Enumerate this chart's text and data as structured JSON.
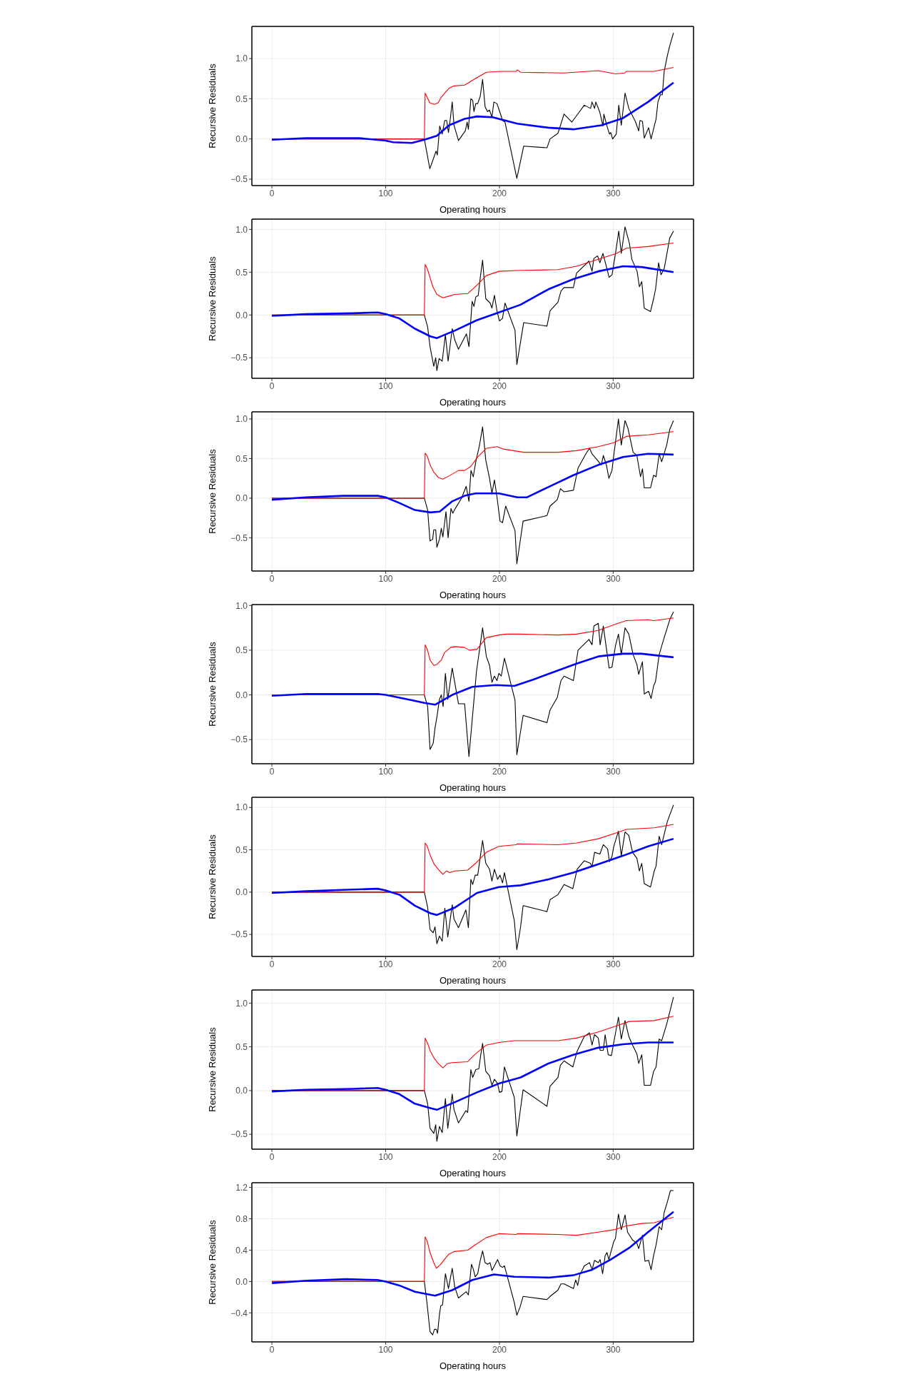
{
  "chart_data": [
    {
      "type": "line",
      "xlabel": "Operating hours",
      "ylabel": "Recursive Residuals",
      "xlim": [
        -17.6,
        370.6
      ],
      "xticks": [
        0,
        100,
        200,
        300
      ],
      "ylim": [
        -0.58,
        1.4
      ],
      "yticks": [
        {
          "value": -0.5,
          "label": "−0.5"
        },
        {
          "value": 0,
          "label": "0.0"
        },
        {
          "value": 0.5,
          "label": "0.5"
        },
        {
          "value": 1,
          "label": "1.0"
        }
      ],
      "grid": true,
      "series": [
        {
          "color": "#000000",
          "x": [
            0,
            134,
            138.8,
            142.6,
            144.3,
            145.4,
            147.5,
            149.7,
            151.9,
            153.6,
            155.2,
            156.8,
            158.5,
            160.1,
            164,
            170,
            171.6,
            172.7,
            174.9,
            176.5,
            177.6,
            179.2,
            180.9,
            183.1,
            185.2,
            187.4,
            189.6,
            191.3,
            193.4,
            195.1,
            197.8,
            200.5,
            202.7,
            204.9,
            215.3,
            221.3,
            241.8,
            244.5,
            251.4,
            256.8,
            263.7,
            267.8,
            274.6,
            280.1,
            281.4,
            283.6,
            284.7,
            288.3,
            291,
            291.8,
            294.5,
            296.7,
            297.8,
            299.5,
            302.7,
            304.9,
            307.1,
            310.4,
            313.7,
            319.7,
            322.4,
            323.5,
            325.7,
            327.3,
            331.1,
            333.3,
            336.1,
            337.7,
            339.3,
            341.5,
            343.2,
            344.8,
            347.5,
            349.7,
            353
          ],
          "values": [
            0,
            0,
            -0.37,
            -0.22,
            -0.15,
            -0.2,
            0.16,
            0.06,
            0.23,
            0.23,
            0.08,
            0.25,
            0.46,
            0.17,
            -0.02,
            0.1,
            0.21,
            0.12,
            0.5,
            0.48,
            0.34,
            0.44,
            0.44,
            0.53,
            0.74,
            0.4,
            0.34,
            0.36,
            0.27,
            0.46,
            0.44,
            0.33,
            0.23,
            0.21,
            -0.49,
            -0.09,
            -0.11,
            0,
            0.07,
            0.31,
            0.21,
            0.29,
            0.42,
            0.38,
            0.46,
            0.38,
            0.46,
            0.33,
            0.16,
            0.31,
            0.16,
            0.06,
            0.08,
            0,
            0.06,
            0.42,
            0.17,
            0.57,
            0.38,
            0.21,
            0.1,
            0.23,
            0.22,
            0.01,
            0.14,
            0,
            0.16,
            0.25,
            0.46,
            0.55,
            0.55,
            0.84,
            1.03,
            1.16,
            1.32
          ]
        },
        {
          "color": "#ff0000",
          "x": [
            0,
            134,
            134.7,
            138.8,
            142.6,
            146.2,
            148.9,
            155.7,
            160.1,
            169.4,
            177.6,
            188.5,
            200.5,
            214.5,
            215.8,
            218.6,
            256.8,
            286.9,
            302,
            310.1,
            311.5,
            336,
            353
          ],
          "values": [
            0,
            0,
            0.57,
            0.45,
            0.43,
            0.45,
            0.52,
            0.63,
            0.66,
            0.67,
            0.74,
            0.83,
            0.84,
            0.84,
            0.86,
            0.83,
            0.82,
            0.85,
            0.81,
            0.82,
            0.84,
            0.84,
            0.89
          ]
        },
        {
          "color": "#0000ff",
          "x": [
            0,
            30,
            76.5,
            100,
            106.6,
            123,
            134,
            145,
            155.7,
            169.4,
            180.3,
            194,
            215.8,
            243,
            265,
            289.6,
            308.7,
            330.6,
            353
          ],
          "values": [
            -0.01,
            0.01,
            0.01,
            -0.02,
            -0.04,
            -0.05,
            -0.01,
            0.04,
            0.17,
            0.25,
            0.28,
            0.27,
            0.19,
            0.14,
            0.12,
            0.17,
            0.26,
            0.46,
            0.7
          ]
        }
      ]
    },
    {
      "type": "line",
      "xlabel": "Operating hours",
      "ylabel": "Recursive Residuals",
      "xlim": [
        -17.6,
        370.6
      ],
      "xticks": [
        0,
        100,
        200,
        300
      ],
      "ylim": [
        -0.74,
        1.12
      ],
      "yticks": [
        {
          "value": -0.5,
          "label": "−0.5"
        },
        {
          "value": 0,
          "label": "0.0"
        },
        {
          "value": 0.5,
          "label": "0.5"
        },
        {
          "value": 1,
          "label": "1.0"
        }
      ],
      "grid": true,
      "series": [
        {
          "color": "#000000",
          "x": [
            0,
            134,
            136.9,
            139,
            142.3,
            144,
            145,
            147,
            149.7,
            152.5,
            154.9,
            158.5,
            160.7,
            164,
            171,
            173.2,
            176,
            177.6,
            179.2,
            181.4,
            183,
            185.2,
            188,
            191.8,
            193.4,
            195.6,
            197.8,
            200,
            202.7,
            204.9,
            213.7,
            215.3,
            221.3,
            241.8,
            244.5,
            251.4,
            254.1,
            256.8,
            265,
            267.8,
            278.7,
            281.4,
            283,
            286.3,
            288.3,
            291,
            296.4,
            299,
            302,
            304.9,
            307.1,
            310.4,
            314.2,
            316.4,
            321,
            323,
            325.1,
            327.3,
            332.8,
            335.5,
            337.2,
            339.9,
            342,
            344.8,
            349.7,
            353
          ],
          "values": [
            0,
            0,
            -0.14,
            -0.37,
            -0.6,
            -0.5,
            -0.65,
            -0.51,
            -0.54,
            -0.23,
            -0.54,
            -0.16,
            -0.29,
            -0.4,
            -0.22,
            -0.37,
            0.16,
            0.1,
            0.21,
            0.23,
            0.42,
            0.64,
            0.19,
            0.14,
            0.08,
            0.23,
            0.05,
            -0.07,
            -0.04,
            0.14,
            -0.18,
            -0.58,
            -0.09,
            -0.13,
            0.05,
            0.15,
            0.28,
            0.32,
            0.32,
            0.49,
            0.63,
            0.51,
            0.66,
            0.69,
            0.61,
            0.72,
            0.44,
            0.47,
            0.72,
            0.98,
            0.72,
            1.03,
            0.84,
            0.65,
            0.51,
            0.33,
            0.39,
            0.08,
            0.04,
            0.19,
            0.3,
            0.61,
            0.47,
            0.54,
            0.9,
            0.98
          ]
        },
        {
          "color": "#ff0000",
          "x": [
            0,
            134,
            134.7,
            136.6,
            141.5,
            145,
            150.3,
            155.7,
            160.7,
            172.1,
            180.3,
            188.5,
            199.5,
            215.8,
            251.4,
            267.8,
            286.9,
            303,
            311.5,
            330.6,
            353
          ],
          "values": [
            0,
            0,
            0.59,
            0.54,
            0.33,
            0.24,
            0.2,
            0.22,
            0.24,
            0.25,
            0.35,
            0.46,
            0.51,
            0.52,
            0.53,
            0.57,
            0.65,
            0.72,
            0.78,
            0.8,
            0.84
          ]
        },
        {
          "color": "#0000ff",
          "x": [
            0,
            30,
            71,
            93,
            100,
            112,
            125.7,
            139.3,
            145,
            161.2,
            180.3,
            199.5,
            218.6,
            243,
            265,
            286.9,
            308.7,
            325,
            353
          ],
          "values": [
            -0.01,
            0.01,
            0.02,
            0.03,
            0.01,
            -0.04,
            -0.16,
            -0.25,
            -0.27,
            -0.18,
            -0.06,
            0.03,
            0.12,
            0.3,
            0.42,
            0.51,
            0.57,
            0.56,
            0.5
          ]
        }
      ]
    },
    {
      "type": "line",
      "xlabel": "Operating hours",
      "ylabel": "Recursive Residuals",
      "xlim": [
        -17.6,
        370.6
      ],
      "xticks": [
        0,
        100,
        200,
        300
      ],
      "ylim": [
        -0.92,
        1.09
      ],
      "yticks": [
        {
          "value": -0.5,
          "label": "−0.5"
        },
        {
          "value": 0,
          "label": "0.0"
        },
        {
          "value": 0.5,
          "label": "0.5"
        },
        {
          "value": 1,
          "label": "1.0"
        }
      ],
      "grid": true,
      "series": [
        {
          "color": "#000000",
          "x": [
            0,
            134,
            136.9,
            139,
            141.3,
            142.3,
            144,
            145,
            147.3,
            148.9,
            150.3,
            153,
            154.9,
            157.4,
            159,
            161.2,
            166.7,
            170.8,
            173.2,
            175,
            177,
            179.2,
            182.5,
            185.2,
            188,
            191.3,
            193.4,
            195.6,
            197.8,
            200.5,
            202.7,
            205.5,
            213.7,
            215.3,
            220.8,
            241.8,
            244.5,
            250.8,
            253.6,
            256.8,
            265,
            269.1,
            276,
            279.2,
            281.4,
            289.6,
            291.3,
            294,
            296.2,
            298.9,
            300.5,
            304.6,
            307.1,
            310.4,
            313,
            317.5,
            320.8,
            324,
            325.7,
            327.3,
            332.8,
            335.5,
            337.7,
            340.4,
            342.6,
            347,
            349.7,
            353
          ],
          "values": [
            0,
            0,
            -0.15,
            -0.54,
            -0.52,
            -0.4,
            -0.4,
            -0.62,
            -0.52,
            -0.38,
            -0.49,
            -0.17,
            -0.5,
            -0.13,
            -0.19,
            -0.13,
            0,
            0.15,
            -0.04,
            0.35,
            0.27,
            0.46,
            0.67,
            0.9,
            0.48,
            0.25,
            0.06,
            0.23,
            0.02,
            -0.29,
            -0.31,
            -0.1,
            -0.41,
            -0.83,
            -0.29,
            -0.22,
            -0.1,
            -0.02,
            0.12,
            0.08,
            0.1,
            0.38,
            0.56,
            0.63,
            0.56,
            0.42,
            0.54,
            0.42,
            0.25,
            0.35,
            0.54,
            1,
            0.67,
            0.98,
            0.88,
            0.58,
            0.54,
            0.27,
            0.37,
            0.13,
            0.13,
            0.29,
            0.27,
            0.56,
            0.46,
            0.67,
            0.87,
            0.98
          ]
        },
        {
          "color": "#ff0000",
          "x": [
            0,
            134,
            134.7,
            136.6,
            139,
            142.3,
            146.4,
            150.3,
            155.7,
            164,
            169.4,
            174.9,
            180.3,
            188.5,
            198,
            203.5,
            221.3,
            251.4,
            267.8,
            286.9,
            300.5,
            311.5,
            330.6,
            353
          ],
          "values": [
            0,
            0,
            0.57,
            0.53,
            0.42,
            0.33,
            0.26,
            0.24,
            0.28,
            0.35,
            0.35,
            0.4,
            0.51,
            0.63,
            0.65,
            0.62,
            0.58,
            0.58,
            0.6,
            0.65,
            0.7,
            0.78,
            0.8,
            0.84
          ]
        },
        {
          "color": "#0000ff",
          "x": [
            0,
            30,
            62.8,
            93,
            100,
            112,
            125.7,
            139.3,
            147.5,
            158.5,
            169.4,
            179,
            199.5,
            215.8,
            224,
            243,
            265,
            286.9,
            308.7,
            330.6,
            353
          ],
          "values": [
            -0.02,
            0.01,
            0.03,
            0.03,
            0.01,
            -0.06,
            -0.15,
            -0.18,
            -0.17,
            -0.04,
            0.03,
            0.06,
            0.06,
            0.01,
            0.01,
            0.14,
            0.29,
            0.42,
            0.52,
            0.56,
            0.55
          ]
        }
      ]
    },
    {
      "type": "line",
      "xlabel": "Operating hours",
      "ylabel": "Recursive Residuals",
      "xlim": [
        -17.6,
        370.6
      ],
      "xticks": [
        0,
        100,
        200,
        300
      ],
      "ylim": [
        -0.77,
        1.01
      ],
      "yticks": [
        {
          "value": -0.5,
          "label": "−0.5"
        },
        {
          "value": 0,
          "label": "0.0"
        },
        {
          "value": 0.5,
          "label": "0.5"
        },
        {
          "value": 1,
          "label": "1.0"
        }
      ],
      "grid": true,
      "series": [
        {
          "color": "#000000",
          "x": [
            0,
            134,
            136.9,
            139,
            141.8,
            143.4,
            145,
            147.3,
            148.9,
            150.5,
            152.5,
            154.6,
            158.5,
            164,
            169.4,
            173.2,
            179.8,
            185.2,
            188.5,
            191.3,
            193.4,
            195.6,
            197.8,
            199.5,
            201.6,
            204.4,
            213.7,
            215.3,
            220.8,
            241.8,
            244.5,
            250.8,
            254.1,
            256.8,
            265,
            269.1,
            278.7,
            281.4,
            283,
            286.9,
            288.5,
            291.3,
            296.4,
            298.9,
            302,
            304.6,
            307.1,
            310.4,
            313.7,
            317.5,
            320.8,
            322.4,
            325.7,
            327.3,
            331.1,
            333.3,
            335.5,
            337.2,
            340.4,
            344.3,
            349.7,
            353
          ],
          "values": [
            0,
            0,
            -0.13,
            -0.61,
            -0.54,
            -0.37,
            -0.25,
            -0.05,
            0,
            -0.13,
            0.24,
            -0.05,
            0.3,
            -0.1,
            -0.1,
            -0.69,
            0.26,
            0.75,
            0.43,
            0.33,
            0.14,
            0.21,
            0.16,
            0.24,
            0.21,
            0.41,
            -0.06,
            -0.67,
            -0.23,
            -0.31,
            -0.17,
            -0.03,
            0.16,
            0.21,
            0.16,
            0.5,
            0.62,
            0.56,
            0.77,
            0.8,
            0.56,
            0.77,
            0.3,
            0.31,
            0.55,
            0.68,
            0.45,
            0.75,
            0.68,
            0.45,
            0.34,
            0.23,
            0.37,
            0.01,
            0.04,
            -0.04,
            0.1,
            0.15,
            0.45,
            0.62,
            0.84,
            0.93
          ]
        },
        {
          "color": "#ff0000",
          "x": [
            0,
            134,
            134.7,
            136.6,
            139,
            142.3,
            145,
            149,
            151.6,
            157,
            161.2,
            169.4,
            173.5,
            180.3,
            188.5,
            199.5,
            206.3,
            217.2,
            251.4,
            267.8,
            286.9,
            302,
            311.5,
            330.6,
            336,
            353
          ],
          "values": [
            0,
            0,
            0.56,
            0.51,
            0.39,
            0.33,
            0.34,
            0.39,
            0.47,
            0.53,
            0.54,
            0.53,
            0.5,
            0.51,
            0.64,
            0.67,
            0.68,
            0.68,
            0.67,
            0.68,
            0.72,
            0.79,
            0.83,
            0.84,
            0.83,
            0.86
          ]
        },
        {
          "color": "#0000ff",
          "x": [
            0,
            30,
            68.3,
            93,
            100,
            123,
            134,
            143.4,
            158.5,
            176.2,
            196.7,
            213.1,
            229.5,
            248.6,
            267.8,
            286.9,
            308.7,
            325,
            353
          ],
          "values": [
            -0.01,
            0.01,
            0.01,
            0.01,
            0,
            -0.06,
            -0.09,
            -0.11,
            0,
            0.09,
            0.11,
            0.1,
            0.17,
            0.26,
            0.35,
            0.43,
            0.46,
            0.46,
            0.42
          ]
        }
      ]
    },
    {
      "type": "line",
      "xlabel": "Operating hours",
      "ylabel": "Recursive Residuals",
      "xlim": [
        -17.6,
        370.6
      ],
      "xticks": [
        0,
        100,
        200,
        300
      ],
      "ylim": [
        -0.76,
        1.12
      ],
      "yticks": [
        {
          "value": -0.5,
          "label": "−0.5"
        },
        {
          "value": 0,
          "label": "0.0"
        },
        {
          "value": 0.5,
          "label": "0.5"
        },
        {
          "value": 1,
          "label": "1.0"
        }
      ],
      "grid": true,
      "series": [
        {
          "color": "#000000",
          "x": [
            0,
            134,
            136.9,
            139,
            141.8,
            143.4,
            145,
            147.3,
            149.7,
            152,
            154.6,
            158.5,
            160.1,
            164,
            170.5,
            172.7,
            174.9,
            176.5,
            178.7,
            180.9,
            183,
            185.2,
            188,
            191.3,
            193.4,
            195.6,
            198.4,
            200.5,
            202.7,
            204.4,
            213.1,
            215.3,
            218.6,
            220.8,
            241.8,
            244.5,
            251.4,
            256.8,
            264.5,
            268.3,
            274.6,
            280,
            281.4,
            283.6,
            288.3,
            291.3,
            295.1,
            296.7,
            298.9,
            300.5,
            304.6,
            307.1,
            310.4,
            313.7,
            317,
            320.8,
            323,
            325.1,
            327.3,
            332.8,
            336.1,
            337.7,
            340.4,
            342.6,
            347.5,
            353
          ],
          "values": [
            0,
            0,
            -0.18,
            -0.44,
            -0.48,
            -0.41,
            -0.61,
            -0.52,
            -0.58,
            -0.19,
            -0.53,
            -0.15,
            -0.32,
            -0.42,
            -0.21,
            -0.42,
            0.15,
            0.09,
            0.2,
            0.2,
            0.4,
            0.61,
            0.34,
            0.27,
            0.13,
            0.27,
            0.15,
            0.2,
            0.11,
            0.23,
            -0.34,
            -0.68,
            -0.41,
            -0.16,
            -0.23,
            -0.09,
            -0.03,
            0.09,
            0.04,
            0.27,
            0.37,
            0.34,
            0.3,
            0.47,
            0.45,
            0.56,
            0.51,
            0.36,
            0.42,
            0.54,
            0.72,
            0.43,
            0.71,
            0.67,
            0.47,
            0.4,
            0.25,
            0.34,
            0.1,
            0.06,
            0.25,
            0.31,
            0.66,
            0.56,
            0.83,
            1.03
          ]
        },
        {
          "color": "#ff0000",
          "x": [
            0,
            134,
            134.7,
            136.6,
            139.3,
            142.6,
            146.2,
            150.3,
            153.6,
            156.3,
            160.7,
            172.1,
            179,
            188.5,
            199.5,
            214.5,
            215.8,
            251.4,
            267.8,
            286.9,
            303,
            311.5,
            336,
            353
          ],
          "values": [
            0,
            0,
            0.58,
            0.54,
            0.43,
            0.33,
            0.27,
            0.21,
            0.25,
            0.23,
            0.25,
            0.26,
            0.34,
            0.47,
            0.54,
            0.56,
            0.57,
            0.56,
            0.58,
            0.63,
            0.7,
            0.74,
            0.76,
            0.8
          ]
        },
        {
          "color": "#0000ff",
          "x": [
            0,
            30,
            71,
            93,
            100,
            112,
            125.7,
            139.3,
            145,
            161.2,
            180.3,
            199.5,
            218.6,
            243,
            265,
            286.9,
            308.7,
            330.6,
            353
          ],
          "values": [
            -0.01,
            0.01,
            0.03,
            0.04,
            0.02,
            -0.03,
            -0.16,
            -0.25,
            -0.27,
            -0.18,
            -0.01,
            0.06,
            0.08,
            0.15,
            0.23,
            0.33,
            0.43,
            0.54,
            0.63
          ]
        }
      ]
    },
    {
      "type": "line",
      "xlabel": "Operating hours",
      "ylabel": "Recursive Residuals",
      "xlim": [
        -17.6,
        370.6
      ],
      "xticks": [
        0,
        100,
        200,
        300
      ],
      "ylim": [
        -0.67,
        1.15
      ],
      "yticks": [
        {
          "value": -0.5,
          "label": "−0.5"
        },
        {
          "value": 0,
          "label": "0.0"
        },
        {
          "value": 0.5,
          "label": "0.5"
        },
        {
          "value": 1,
          "label": "1.0"
        }
      ],
      "grid": true,
      "series": [
        {
          "color": "#000000",
          "x": [
            0,
            134,
            136.9,
            139,
            142.3,
            144,
            145,
            147.3,
            149.7,
            152.5,
            154.6,
            158.5,
            160.1,
            164,
            170.5,
            172.1,
            174.9,
            176.5,
            179.2,
            181.9,
            183.6,
            185.2,
            188,
            191.3,
            193.4,
            195.6,
            198.4,
            200,
            202.2,
            204.4,
            213.1,
            215.3,
            220.8,
            241.8,
            244.5,
            251.4,
            253.6,
            256.8,
            264.5,
            268.3,
            274.6,
            279.2,
            281.4,
            283.6,
            286.9,
            288.5,
            291.3,
            292.9,
            295.6,
            298.4,
            300.5,
            304.6,
            307.1,
            310.4,
            313.7,
            317,
            320.8,
            322.4,
            325.1,
            327.3,
            332.8,
            335.5,
            337.7,
            340.4,
            342.6,
            347,
            353
          ],
          "values": [
            0,
            0,
            -0.15,
            -0.43,
            -0.49,
            -0.39,
            -0.58,
            -0.41,
            -0.48,
            -0.09,
            -0.43,
            -0.04,
            -0.22,
            -0.37,
            -0.23,
            -0.25,
            0.24,
            0.15,
            0.24,
            0.25,
            0.41,
            0.54,
            0.22,
            0.17,
            0.06,
            0.13,
            0.08,
            -0.02,
            -0.01,
            0.27,
            -0.08,
            -0.52,
            0.01,
            -0.18,
            0.05,
            0.15,
            0.29,
            0.34,
            0.27,
            0.45,
            0.62,
            0.66,
            0.52,
            0.64,
            0.6,
            0.46,
            0.46,
            0.64,
            0.41,
            0.4,
            0.55,
            0.84,
            0.59,
            0.8,
            0.62,
            0.52,
            0.42,
            0.31,
            0.41,
            0.06,
            0.06,
            0.22,
            0.27,
            0.59,
            0.57,
            0.76,
            1.07
          ]
        },
        {
          "color": "#ff0000",
          "x": [
            0,
            134,
            134.7,
            136.6,
            139.3,
            142.6,
            146.2,
            150.3,
            154.4,
            158.5,
            172.1,
            179,
            188.5,
            199.5,
            213.1,
            251.4,
            267.8,
            286.9,
            303,
            314,
            336,
            353
          ],
          "values": [
            0,
            0,
            0.6,
            0.55,
            0.45,
            0.37,
            0.31,
            0.26,
            0.31,
            0.32,
            0.33,
            0.42,
            0.52,
            0.55,
            0.57,
            0.57,
            0.6,
            0.67,
            0.74,
            0.79,
            0.8,
            0.85
          ]
        },
        {
          "color": "#0000ff",
          "x": [
            0,
            30,
            71,
            93,
            100,
            112,
            125.7,
            139.3,
            145,
            161.2,
            180.3,
            199.5,
            218.6,
            243,
            265,
            286.9,
            308.7,
            330.6,
            353
          ],
          "values": [
            -0.01,
            0.01,
            0.02,
            0.03,
            0.01,
            -0.04,
            -0.15,
            -0.2,
            -0.22,
            -0.13,
            -0.02,
            0.08,
            0.15,
            0.31,
            0.41,
            0.49,
            0.53,
            0.55,
            0.55
          ]
        }
      ]
    },
    {
      "type": "line",
      "xlabel": "Operating hours",
      "ylabel": "Recursive Residuals",
      "xlim": [
        -17.6,
        370.6
      ],
      "xticks": [
        0,
        100,
        200,
        300
      ],
      "ylim": [
        -0.77,
        1.26
      ],
      "yticks": [
        {
          "value": -0.4,
          "label": "−0.4"
        },
        {
          "value": 0,
          "label": "0.0"
        },
        {
          "value": 0.4,
          "label": "0.4"
        },
        {
          "value": 0.8,
          "label": "0.8"
        },
        {
          "value": 1.2,
          "label": "1.2"
        }
      ],
      "grid": true,
      "series": [
        {
          "color": "#000000",
          "x": [
            0,
            134,
            136.3,
            139,
            141.3,
            142.9,
            144.5,
            145.6,
            147.3,
            148.4,
            150,
            152.5,
            155.2,
            158.5,
            160.7,
            164,
            170.8,
            172.7,
            175.4,
            177,
            178.7,
            180.9,
            183,
            185.2,
            187.4,
            189.6,
            191.8,
            193.4,
            195.6,
            198.4,
            200.5,
            202.7,
            204.4,
            213.1,
            215.3,
            218,
            220.8,
            241.8,
            244.5,
            251.4,
            254.1,
            256.8,
            265,
            267,
            268.8,
            270.5,
            274.6,
            279.2,
            281.4,
            283.6,
            286.9,
            288.5,
            290.7,
            292.9,
            294.5,
            296.2,
            300.5,
            302,
            304.6,
            307.1,
            310.4,
            312.6,
            317,
            320.8,
            322.4,
            325.7,
            327.9,
            331.1,
            333.3,
            335.5,
            337.7,
            340.4,
            342.6,
            344.8,
            347.5,
            350.3,
            353
          ],
          "values": [
            0,
            0,
            -0.27,
            -0.64,
            -0.68,
            -0.61,
            -0.61,
            -0.66,
            -0.42,
            -0.31,
            -0.3,
            0.1,
            -0.09,
            0.17,
            -0.07,
            -0.21,
            -0.13,
            -0.17,
            0.22,
            0.16,
            0.06,
            0.1,
            0.26,
            0.39,
            0.24,
            0.22,
            0.24,
            0.14,
            0.2,
            0.28,
            0.2,
            0.18,
            0.2,
            -0.27,
            -0.43,
            -0.33,
            -0.19,
            -0.23,
            -0.19,
            -0.11,
            -0.03,
            -0.03,
            -0.09,
            0.02,
            -0.05,
            0.08,
            0.2,
            0.24,
            0.15,
            0.27,
            0.24,
            0.28,
            0.1,
            0.33,
            0.37,
            0.28,
            0.51,
            0.55,
            0.86,
            0.66,
            0.85,
            0.63,
            0.53,
            0.49,
            0.42,
            0.59,
            0.26,
            0.27,
            0.15,
            0.33,
            0.47,
            0.7,
            0.66,
            0.88,
            1.01,
            1.16,
            1.16
          ]
        },
        {
          "color": "#ff0000",
          "x": [
            0,
            134,
            134.7,
            136.6,
            139,
            142.3,
            144.5,
            147.8,
            151.6,
            155.7,
            159.8,
            172.1,
            179,
            188.5,
            199.5,
            214.5,
            215.8,
            251.4,
            267.8,
            286.9,
            300.5,
            311.5,
            325.1,
            336,
            353
          ],
          "values": [
            0,
            0,
            0.57,
            0.51,
            0.37,
            0.24,
            0.17,
            0.21,
            0.28,
            0.35,
            0.38,
            0.4,
            0.47,
            0.56,
            0.61,
            0.6,
            0.61,
            0.6,
            0.59,
            0.63,
            0.66,
            0.71,
            0.74,
            0.75,
            0.82
          ]
        },
        {
          "color": "#0000ff",
          "x": [
            0,
            30,
            65.6,
            93,
            100,
            112,
            125.7,
            143.4,
            158.5,
            176.2,
            195.3,
            213.1,
            243,
            265,
            281.4,
            297.8,
            314.2,
            330.6,
            353
          ],
          "values": [
            -0.02,
            0.01,
            0.03,
            0.02,
            0,
            -0.05,
            -0.13,
            -0.18,
            -0.11,
            0.02,
            0.09,
            0.06,
            0.05,
            0.08,
            0.15,
            0.28,
            0.43,
            0.63,
            0.89
          ]
        }
      ]
    }
  ]
}
